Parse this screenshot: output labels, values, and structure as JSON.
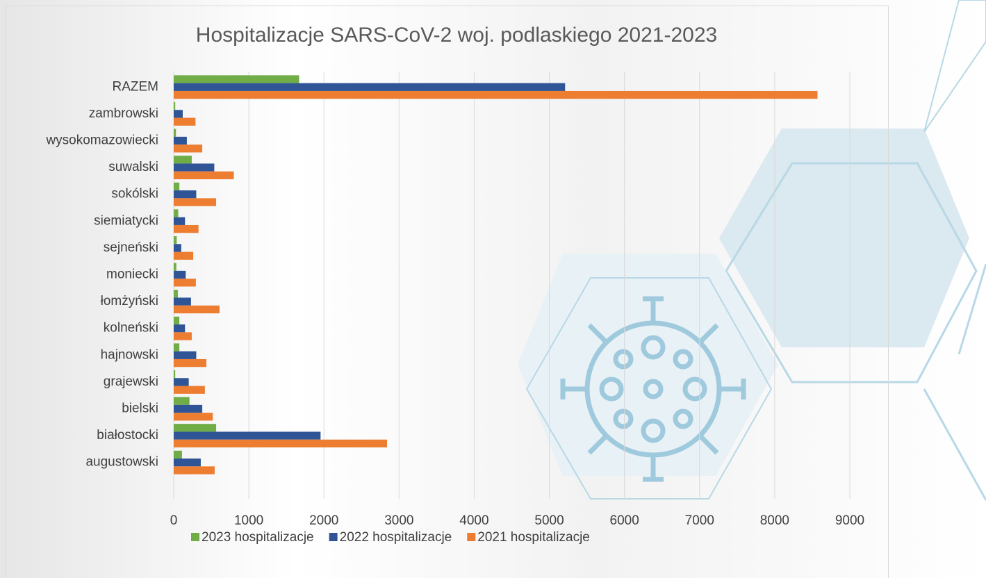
{
  "chart_data": {
    "type": "hbar",
    "title": "Hospitalizacje SARS-CoV-2 woj. podlaskiego 2021-2023",
    "categories": [
      "augustowski",
      "białostocki",
      "bielski",
      "grajewski",
      "hajnowski",
      "kolneński",
      "łomżyński",
      "moniecki",
      "sejneński",
      "siemiatycki",
      "sokólski",
      "suwalski",
      "wysokomazowiecki",
      "zambrowski",
      "RAZEM"
    ],
    "series": [
      {
        "name": "2023 hospitalizacje",
        "color": "#70ad47",
        "values": [
          110,
          565,
          210,
          20,
          75,
          75,
          55,
          35,
          40,
          60,
          75,
          240,
          30,
          20,
          1670
        ]
      },
      {
        "name": "2022 hospitalizacje",
        "color": "#2f5597",
        "values": [
          360,
          1955,
          380,
          200,
          300,
          150,
          230,
          160,
          100,
          150,
          300,
          540,
          175,
          120,
          5210
        ]
      },
      {
        "name": "2021 hospitalizacje",
        "color": "#ed7d31",
        "values": [
          545,
          2840,
          520,
          415,
          435,
          240,
          610,
          295,
          260,
          330,
          565,
          800,
          380,
          290,
          8570
        ]
      }
    ],
    "xlim": [
      0,
      9000
    ],
    "xticks": [
      0,
      1000,
      2000,
      3000,
      4000,
      5000,
      6000,
      7000,
      8000,
      9000
    ],
    "grid": true,
    "legend": "bottom"
  }
}
